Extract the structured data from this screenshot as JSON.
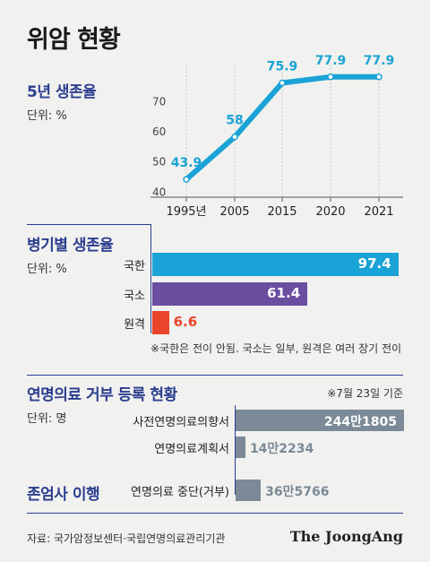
{
  "title": "위암 현황",
  "chart_data": [
    {
      "type": "line",
      "title": "5년 생존율",
      "unit": "단위: %",
      "x": [
        "1995년",
        "2005",
        "2015",
        "2020",
        "2021"
      ],
      "values": [
        43.9,
        58,
        75.9,
        77.9,
        77.9
      ],
      "yticks": [
        40,
        50,
        60,
        70
      ],
      "ylim": [
        38,
        82
      ],
      "color": "#1aa3d6"
    },
    {
      "type": "bar",
      "title": "병기별 생존율",
      "unit": "단위: %",
      "categories": [
        "국한",
        "국소",
        "원격"
      ],
      "values": [
        97.4,
        61.4,
        6.6
      ],
      "value_labels": [
        "97.4",
        "61.4",
        "6.6"
      ],
      "colors": [
        "#1aa3d6",
        "#6a4ea0",
        "#e8452b"
      ],
      "note": "※국한은 전이 안됨. 국소는 일부, 원격은 여러 장기 전이"
    },
    {
      "type": "bar",
      "title": "연명의료 거부 등록 현황",
      "unit": "단위: 명",
      "date_note": "※7월 23일 기준",
      "categories": [
        "사전연명의료의향서",
        "연명의료계획서"
      ],
      "values": [
        2441805,
        142234
      ],
      "value_labels": [
        "244만1805",
        "14만2234"
      ],
      "color": "#7b8a96"
    },
    {
      "type": "bar",
      "title": "존엄사 이행",
      "categories": [
        "연명의료 중단(거부)"
      ],
      "values": [
        365766
      ],
      "value_labels": [
        "36만5766"
      ],
      "color": "#7b8a96"
    }
  ],
  "source": "자료: 국가암정보센터·국립연명의료관리기관",
  "brand": "The JoongAng"
}
